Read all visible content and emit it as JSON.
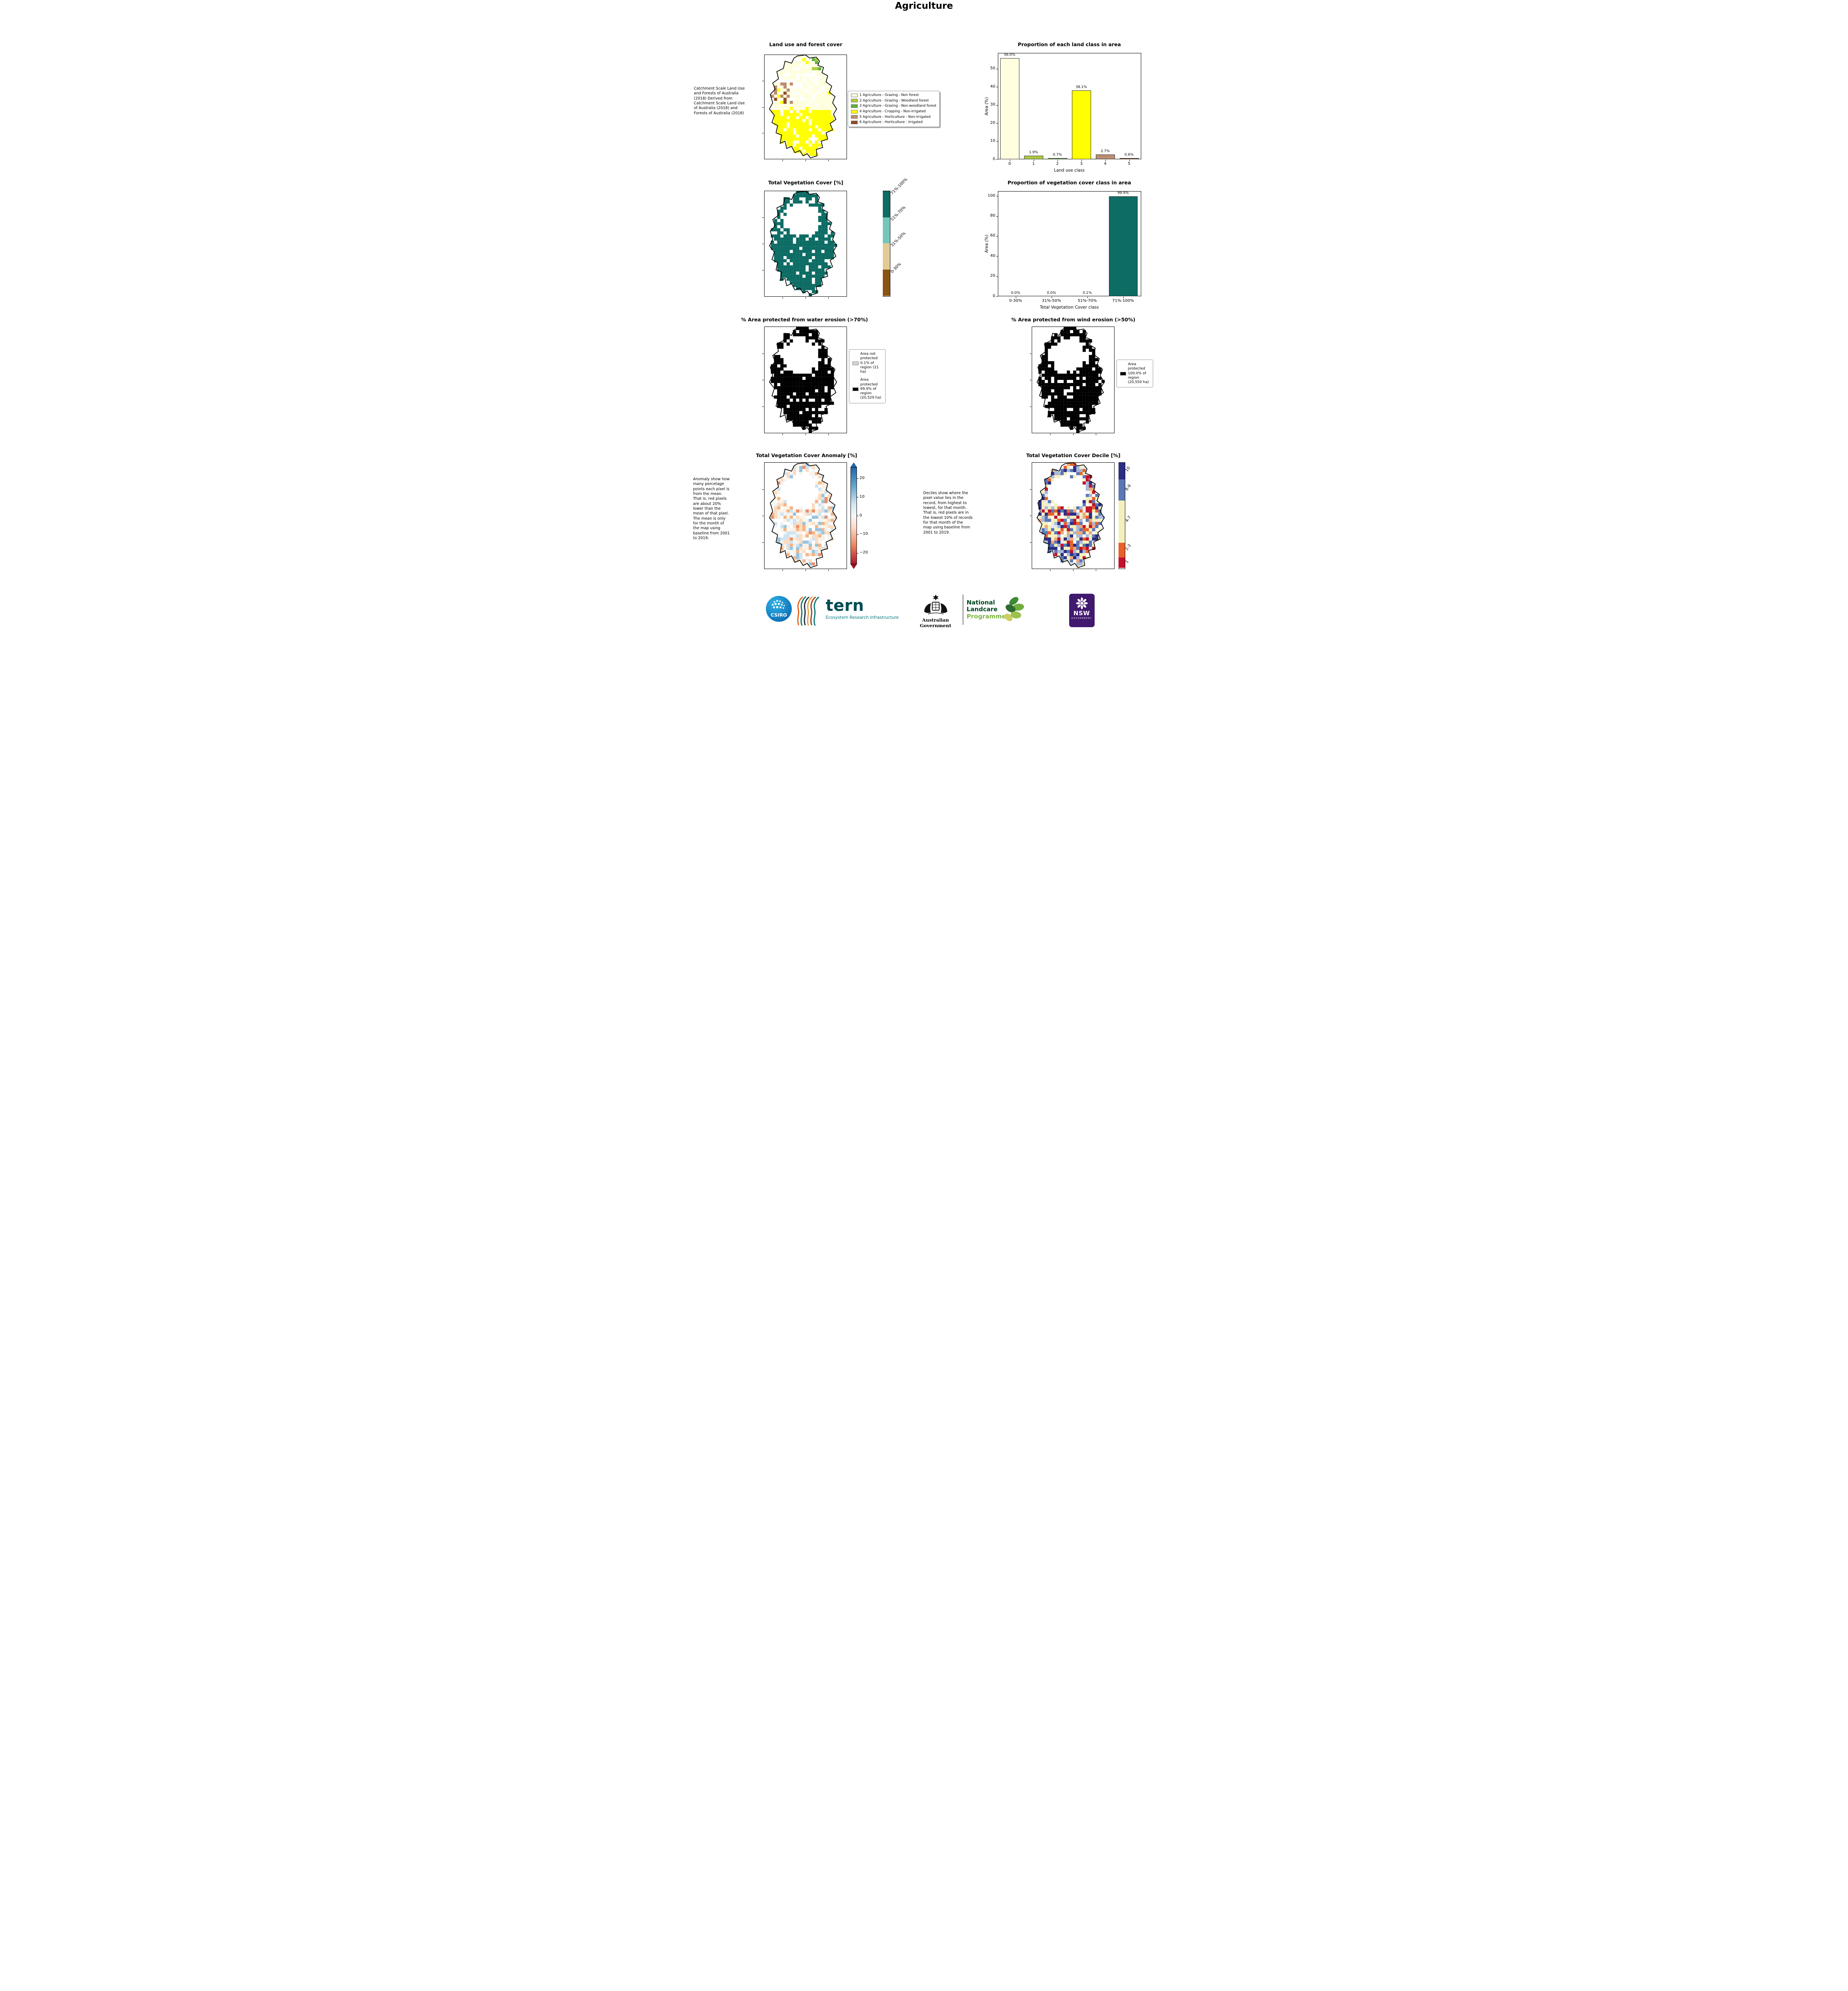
{
  "page": {
    "title": "Agriculture"
  },
  "colors": {
    "cream": "#ffffe0",
    "ygreen": "#aecb3e",
    "green": "#5fae3c",
    "yellow": "#ffff00",
    "rosybrown": "#ba8d72",
    "darkbrown": "#8f4a26",
    "teal": "#0d6c64",
    "teal_light": "#74c6bb",
    "tan": "#e2cb94",
    "brown": "#8a5413",
    "dec_red": "#c3112d",
    "dec_orange": "#e8612c",
    "dec_cream": "#f4f0bd",
    "dec_blue": "#5c77b5",
    "dec_navy": "#2b2e83",
    "not_protected_gray": "#d8d8d8",
    "protected_black": "#000000"
  },
  "panels": {
    "land_use": {
      "title": "Land use and forest cover",
      "note": "Catchment Scale Land Use and Forests of Australia (2018) Derived from Catchment Scale Land Use of Australia (2018) and Forests of Australia (2018)",
      "legend": [
        {
          "label": "1 Agriculture - Grazing - Non forest",
          "color": "#ffffe0"
        },
        {
          "label": "2 Agriculture - Grazing - Woodland forest",
          "color": "#aecb3e"
        },
        {
          "label": "3 Agriculture - Grazing - Non-woodland forest",
          "color": "#5fae3c"
        },
        {
          "label": "4 Agriculture - Cropping - Non-irrigated",
          "color": "#ffff00"
        },
        {
          "label": "5 Agriculture - Horticulture - Non-irrigated",
          "color": "#ba8d72"
        },
        {
          "label": "6 Agriculture - Horticulture - Irrigated",
          "color": "#8f4a26"
        }
      ]
    },
    "veg_cover": {
      "title": "Total Vegetation Cover [%]",
      "colorbar": [
        {
          "label": "71%-100%",
          "color": "#0d6c64",
          "frac": 0.25
        },
        {
          "label": "51%-70%",
          "color": "#74c6bb",
          "frac": 0.25
        },
        {
          "label": "31%-50%",
          "color": "#e2cb94",
          "frac": 0.25
        },
        {
          "label": "0-30%",
          "color": "#8a5413",
          "frac": 0.25
        }
      ]
    },
    "water_erosion": {
      "title": "% Area protected from water erosion (>70%)",
      "legend": [
        {
          "label": "Area not protected 0.1% of region (21 ha)",
          "color": "#d8d8d8"
        },
        {
          "label": "Area protected 99.9% of region (20,529 ha)",
          "color": "#000000"
        }
      ]
    },
    "wind_erosion": {
      "title": "% Area protected from wind erosion (>50%)",
      "legend": [
        {
          "label": "Area protected 100.0% of region (20,550 ha)",
          "color": "#000000"
        }
      ]
    },
    "anomaly": {
      "title": "Total Vegetation Cover Anomaly [%]",
      "note": "Anomaly show how many percetage points each pixel is from the mean. That is, red pixels are about 20% lower than the mean of that pixel. The mean is only for the month of the map using baseline from 2001 to 2019.",
      "range": [
        -26,
        26
      ],
      "ticks": [
        {
          "label": "20",
          "value": 20
        },
        {
          "label": "10",
          "value": 10
        },
        {
          "label": "0",
          "value": 0
        },
        {
          "label": "−10",
          "value": -10
        },
        {
          "label": "−20",
          "value": -20
        }
      ]
    },
    "decile": {
      "title": "Total Vegetation Cover Decile [%]",
      "note": "Deciles show where the pixel value lies in the record, from highest to lowest, for that month. That is, red pixels are in the lowest 10% of records for that month of the map using baseline from 2001 to 2019.",
      "colorbar": [
        {
          "label": "10",
          "color": "#2b2e83",
          "frac": 0.16
        },
        {
          "label": "8-9",
          "color": "#5c77b5",
          "frac": 0.2
        },
        {
          "label": "4-7",
          "color": "#f4f0bd",
          "frac": 0.4
        },
        {
          "label": "2-3",
          "color": "#e8612c",
          "frac": 0.14
        },
        {
          "label": "1",
          "color": "#c3112d",
          "frac": 0.1
        }
      ]
    }
  },
  "chart_data": [
    {
      "type": "bar",
      "title": "Proportion of each land class in area",
      "categories": [
        "0",
        "1",
        "2",
        "3",
        "4",
        "5"
      ],
      "values": [
        56.0,
        1.9,
        0.7,
        38.1,
        2.7,
        0.6
      ],
      "bar_labels": [
        "56.0%",
        "1.9%",
        "0.7%",
        "38.1%",
        "2.7%",
        "0.6%"
      ],
      "bar_colors": [
        "#ffffe0",
        "#aecb3e",
        "#5fae3c",
        "#ffff00",
        "#ba8d72",
        "#8f4a26"
      ],
      "xlabel": "Land use class",
      "ylabel": "Area (%)",
      "ylim": [
        0,
        58.8
      ],
      "yticks": [
        0,
        10,
        20,
        30,
        40,
        50
      ],
      "grid": false,
      "legend_position": "none"
    },
    {
      "type": "bar",
      "title": "Proportion of vegetation cover class in area",
      "categories": [
        "0-30%",
        "31%-50%",
        "51%-70%",
        "71%-100%"
      ],
      "values": [
        0.0,
        0.0,
        0.1,
        99.9
      ],
      "bar_labels": [
        "0.0%",
        "0.0%",
        "0.1%",
        "99.9%"
      ],
      "bar_colors": [
        "#0d6c64",
        "#0d6c64",
        "#0d6c64",
        "#0d6c64"
      ],
      "xlabel": "Total Vegetation Cover class",
      "ylabel": "Area (%)",
      "ylim": [
        0,
        104.9
      ],
      "yticks": [
        0,
        20,
        40,
        60,
        80,
        100
      ],
      "grid": false,
      "legend_position": "none"
    }
  ],
  "footer": {
    "csiro": "CSIRO",
    "tern": "tern",
    "tern_sub": "Ecosystem Research Infrastructure",
    "aus_gov": "Australian Government",
    "landcare_1": "National",
    "landcare_2": "Landcare",
    "landcare_3": "Programme",
    "nsw": "NSW",
    "nsw_sub": "GOVERNMENT"
  }
}
